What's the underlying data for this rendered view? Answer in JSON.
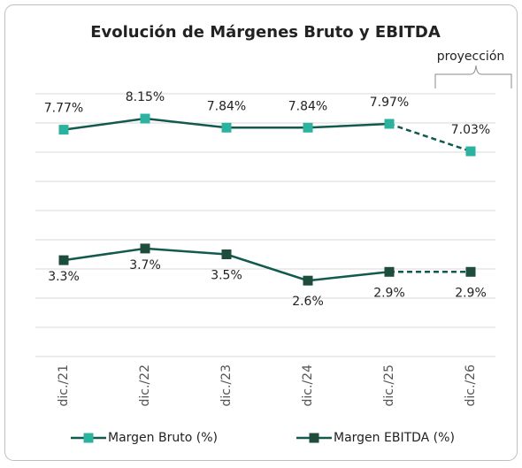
{
  "chart_data": {
    "type": "line",
    "title": "Evolución de Márgenes Bruto y EBITDA",
    "annotation": "proyección",
    "categories": [
      "dic./21",
      "dic./22",
      "dic./23",
      "dic./24",
      "dic./25",
      "dic./26"
    ],
    "series": [
      {
        "name": "Margen Bruto (%)",
        "color": "#2bb3a0",
        "line_color": "#12594e",
        "values": [
          7.77,
          8.15,
          7.84,
          7.84,
          7.97,
          7.03
        ],
        "value_labels": [
          "7.77%",
          "8.15%",
          "7.84%",
          "7.84%",
          "7.97%",
          "7.03%"
        ]
      },
      {
        "name": "Margen EBITDA (%)",
        "color": "#1e4d3b",
        "line_color": "#12594e",
        "values": [
          3.3,
          3.7,
          3.5,
          2.6,
          2.9,
          2.9
        ],
        "value_labels": [
          "3.3%",
          "3.7%",
          "3.5%",
          "2.6%",
          "2.9%",
          "2.9%"
        ]
      }
    ],
    "dashed_from": 4,
    "ylim": [
      0,
      9
    ],
    "yticks": [
      0,
      1,
      2,
      3,
      4,
      5,
      6,
      7,
      8,
      9
    ],
    "grid": true,
    "legend": "bottom"
  }
}
